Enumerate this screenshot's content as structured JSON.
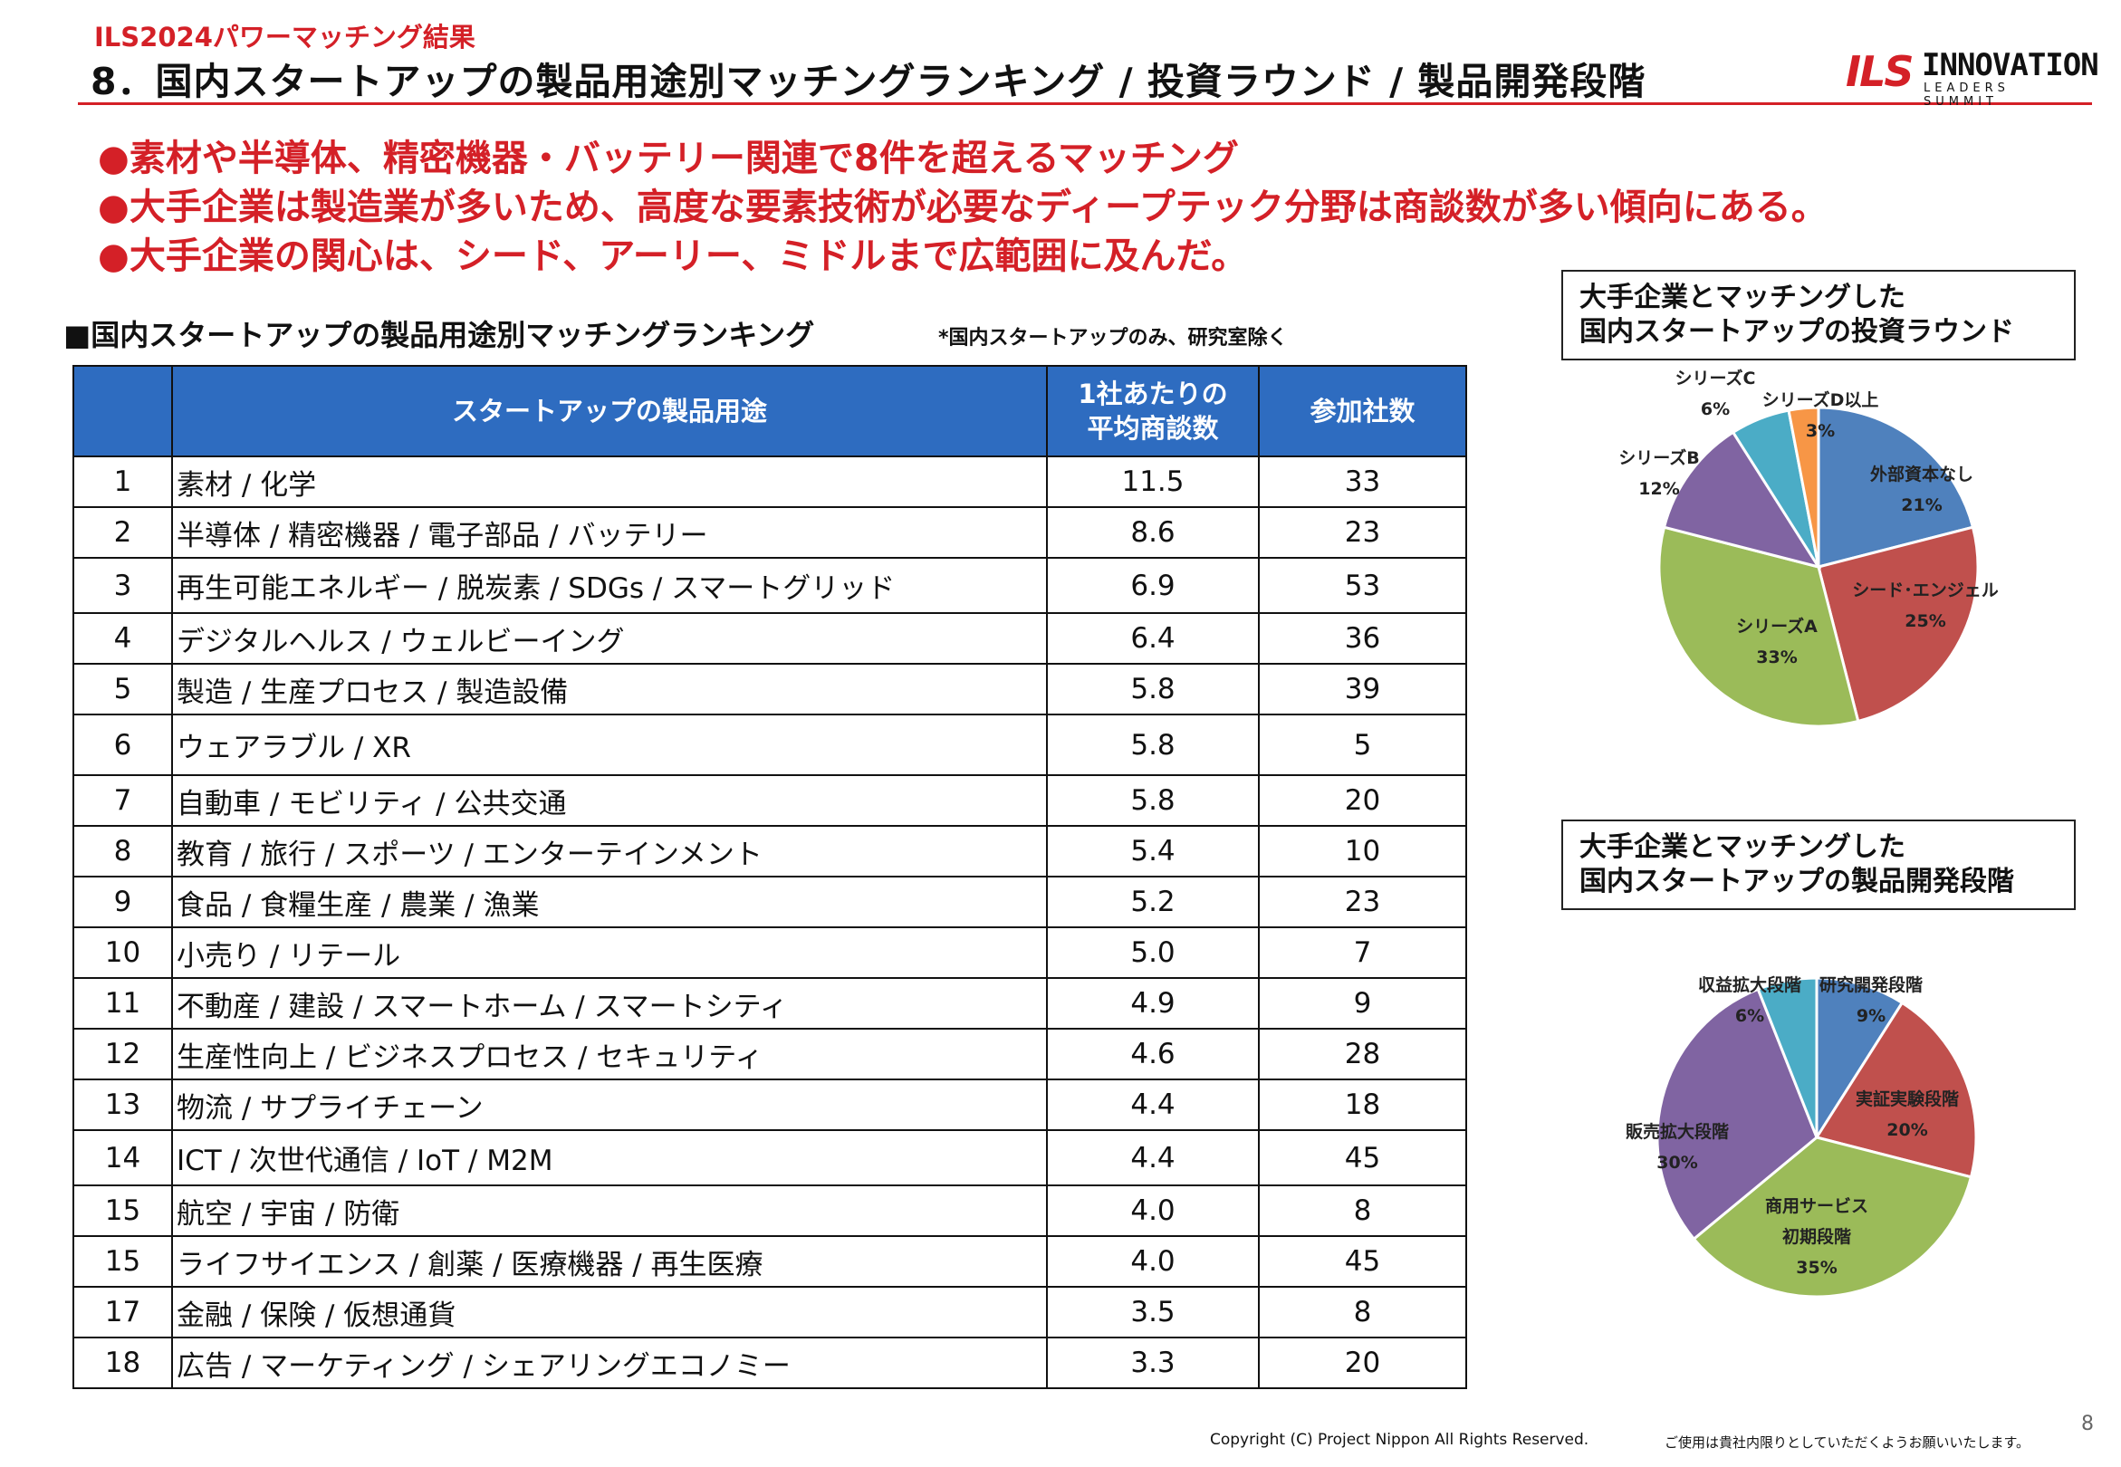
{
  "header": {
    "subtitle": "ILS2024パワーマッチング結果",
    "title": "8．国内スタートアップの製品用途別マッチングランキング / 投資ラウンド / 製品開発段階",
    "logo_mark": "ILS",
    "logo_main": "INNOVATION",
    "logo_sub": "LEADERS SUMMIT",
    "accent_color": "#d42027"
  },
  "bullets": [
    "●素材や半導体、精密機器・バッテリー関連で8件を超えるマッチング",
    "●大手企業は製造業が多いため、高度な要素技術が必要なディープテック分野は商談数が多い傾向にある。",
    "●大手企業の関心は、シード、アーリー、ミドルまで広範囲に及んだ。"
  ],
  "ranking": {
    "section_title": "■国内スタートアップの製品用途別マッチングランキング",
    "note": "*国内スタートアップのみ、研究室除く",
    "columns": [
      "",
      "スタートアップの製品用途",
      "1社あたりの\n平均商談数",
      "参加社数"
    ],
    "rows": [
      {
        "rank": "1",
        "use": "素材 / 化学",
        "avg": "11.5",
        "count": "33"
      },
      {
        "rank": "2",
        "use": "半導体 / 精密機器 / 電子部品 / バッテリー",
        "avg": "8.6",
        "count": "23"
      },
      {
        "rank": "3",
        "use": "再生可能エネルギー / 脱炭素 / SDGs / スマートグリッド",
        "avg": "6.9",
        "count": "53"
      },
      {
        "rank": "4",
        "use": "デジタルヘルス / ウェルビーイング",
        "avg": "6.4",
        "count": "36"
      },
      {
        "rank": "5",
        "use": "製造 / 生産プロセス / 製造設備",
        "avg": "5.8",
        "count": "39"
      },
      {
        "rank": "6",
        "use": "ウェアラブル / XR",
        "avg": "5.8",
        "count": "5"
      },
      {
        "rank": "7",
        "use": "自動車 / モビリティ / 公共交通",
        "avg": "5.8",
        "count": "20"
      },
      {
        "rank": "8",
        "use": "教育 / 旅行 / スポーツ / エンターテインメント",
        "avg": "5.4",
        "count": "10"
      },
      {
        "rank": "9",
        "use": "食品 / 食糧生産 / 農業 / 漁業",
        "avg": "5.2",
        "count": "23"
      },
      {
        "rank": "10",
        "use": "小売り / リテール",
        "avg": "5.0",
        "count": "7"
      },
      {
        "rank": "11",
        "use": "不動産 / 建設 / スマートホーム / スマートシティ",
        "avg": "4.9",
        "count": "9"
      },
      {
        "rank": "12",
        "use": "生産性向上 / ビジネスプロセス / セキュリティ",
        "avg": "4.6",
        "count": "28"
      },
      {
        "rank": "13",
        "use": "物流 / サプライチェーン",
        "avg": "4.4",
        "count": "18"
      },
      {
        "rank": "14",
        "use": "ICT / 次世代通信 / IoT / M2M",
        "avg": "4.4",
        "count": "45"
      },
      {
        "rank": "15",
        "use": "航空 / 宇宙 / 防衛",
        "avg": "4.0",
        "count": "8"
      },
      {
        "rank": "15",
        "use": "ライフサイエンス / 創薬 / 医療機器 / 再生医療",
        "avg": "4.0",
        "count": "45"
      },
      {
        "rank": "17",
        "use": "金融 / 保険 / 仮想通貨",
        "avg": "3.5",
        "count": "8"
      },
      {
        "rank": "18",
        "use": "広告 / マーケティング / シェアリングエコノミー",
        "avg": "3.3",
        "count": "20"
      }
    ],
    "header_color": "#2e6cc0"
  },
  "chart_data": [
    {
      "type": "table",
      "columns": [
        "",
        "スタートアップの製品用途",
        "1社あたりの平均商談数",
        "参加社数"
      ],
      "rows": [
        [
          "1",
          "素材 / 化学",
          11.5,
          33
        ],
        [
          "2",
          "半導体 / 精密機器 / 電子部品 / バッテリー",
          8.6,
          23
        ],
        [
          "3",
          "再生可能エネルギー / 脱炭素 / SDGs / スマートグリッド",
          6.9,
          53
        ],
        [
          "4",
          "デジタルヘルス / ウェルビーイング",
          6.4,
          36
        ],
        [
          "5",
          "製造 / 生産プロセス / 製造設備",
          5.8,
          39
        ],
        [
          "6",
          "ウェアラブル / XR",
          5.8,
          5
        ],
        [
          "7",
          "自動車 / モビリティ / 公共交通",
          5.8,
          20
        ],
        [
          "8",
          "教育 / 旅行 / スポーツ / エンターテインメント",
          5.4,
          10
        ],
        [
          "9",
          "食品 / 食糧生産 / 農業 / 漁業",
          5.2,
          23
        ],
        [
          "10",
          "小売り / リテール",
          5.0,
          7
        ],
        [
          "11",
          "不動産 / 建設 / スマートホーム / スマートシティ",
          4.9,
          9
        ],
        [
          "12",
          "生産性向上 / ビジネスプロセス / セキュリティ",
          4.6,
          28
        ],
        [
          "13",
          "物流 / サプライチェーン",
          4.4,
          18
        ],
        [
          "14",
          "ICT / 次世代通信 / IoT / M2M",
          4.4,
          45
        ],
        [
          "15",
          "航空 / 宇宙 / 防衛",
          4.0,
          8
        ],
        [
          "15",
          "ライフサイエンス / 創薬 / 医療機器 / 再生医療",
          4.0,
          45
        ],
        [
          "17",
          "金融 / 保険 / 仮想通貨",
          3.5,
          8
        ],
        [
          "18",
          "広告 / マーケティング / シェアリングエコノミー",
          3.3,
          20
        ]
      ]
    },
    {
      "type": "pie",
      "title": "大手企業とマッチングした\n国内スタートアップの投資ラウンド",
      "slices": [
        {
          "label": "外部資本なし",
          "value": 21,
          "text": "21%",
          "color": "#4f81bd"
        },
        {
          "label": "シード･エンジェル",
          "value": 25,
          "text": "25%",
          "color": "#c0504d"
        },
        {
          "label": "シリーズA",
          "value": 33,
          "text": "33%",
          "color": "#9bbb59"
        },
        {
          "label": "シリーズB",
          "value": 12,
          "text": "12%",
          "color": "#8064a2"
        },
        {
          "label": "シリーズC",
          "value": 6,
          "text": "6%",
          "color": "#4bacc6"
        },
        {
          "label": "シリーズD以上",
          "value": 3,
          "text": "3%",
          "color": "#f79646"
        }
      ]
    },
    {
      "type": "pie",
      "title": "大手企業とマッチングした\n国内スタートアップの製品開発段階",
      "slices": [
        {
          "label": "研究開発段階",
          "value": 9,
          "text": "9%",
          "color": "#4f81bd"
        },
        {
          "label": "実証実験段階",
          "value": 20,
          "text": "20%",
          "color": "#c0504d"
        },
        {
          "label": "商用サービス\n初期段階",
          "value": 35,
          "text": "35%",
          "color": "#9bbb59"
        },
        {
          "label": "販売拡大段階",
          "value": 30,
          "text": "30%",
          "color": "#8064a2"
        },
        {
          "label": "収益拡大段階",
          "value": 6,
          "text": "6%",
          "color": "#4bacc6"
        }
      ]
    }
  ],
  "footer": {
    "copyright": "Copyright (C) Project Nippon  All Rights Reserved.",
    "notice": "ご使用は貴社内限りとしていただくようお願いいたします。",
    "page": "8"
  }
}
